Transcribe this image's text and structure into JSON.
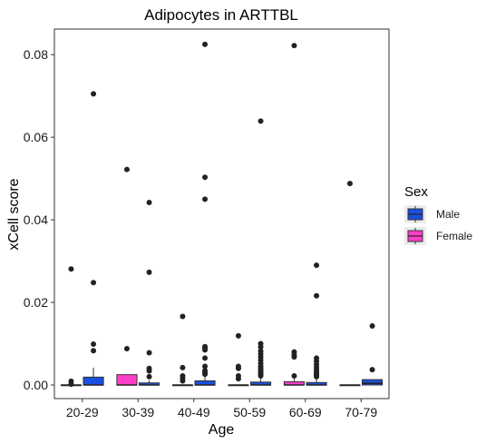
{
  "chart_data": {
    "type": "boxplot",
    "title": "Adipocytes in ARTTBL",
    "xlabel": "Age",
    "ylabel": "xCell score",
    "ylim": [
      -0.0033,
      0.0862
    ],
    "yticks": [
      0.0,
      0.02,
      0.04,
      0.06,
      0.08
    ],
    "ytick_labels": [
      "0.00",
      "0.02",
      "0.04",
      "0.06",
      "0.08"
    ],
    "categories": [
      "20-29",
      "30-39",
      "40-49",
      "50-59",
      "60-69",
      "70-79"
    ],
    "grid": false,
    "legend": {
      "title": "Sex",
      "placement": "right",
      "entries": [
        {
          "label": "Male",
          "color": "#1a4fe0"
        },
        {
          "label": "Female",
          "color": "#ff3fc8"
        }
      ]
    },
    "series": [
      {
        "name": "Male",
        "color": "#1a4fe0",
        "boxes": [
          {
            "category": "20-29",
            "q1": 0.0,
            "median": 0.0,
            "q3": 0.0019,
            "whisker_low": 0.0,
            "whisker_high": 0.0042,
            "outliers": [
              0.0705,
              0.0248,
              0.0099,
              0.0083
            ]
          },
          {
            "category": "30-39",
            "q1": 0.0,
            "median": 0.0,
            "q3": 0.0005,
            "whisker_low": 0.0,
            "whisker_high": 0.0011,
            "outliers": [
              0.0442,
              0.0273,
              0.0078,
              0.004,
              0.0034,
              0.002
            ]
          },
          {
            "category": "40-49",
            "q1": 0.0,
            "median": 0.0,
            "q3": 0.001,
            "whisker_low": 0.0,
            "whisker_high": 0.0023,
            "outliers": [
              0.0825,
              0.0503,
              0.045,
              0.0093,
              0.0089,
              0.0085,
              0.0065,
              0.0045,
              0.0035,
              0.003,
              0.0026
            ]
          },
          {
            "category": "50-59",
            "q1": 0.0,
            "median": 0.0,
            "q3": 0.0007,
            "whisker_low": 0.0,
            "whisker_high": 0.0018,
            "outliers": [
              0.0639,
              0.01,
              0.0092,
              0.0082,
              0.0075,
              0.0068,
              0.006,
              0.0052,
              0.0045,
              0.004,
              0.0035,
              0.003,
              0.0026,
              0.0022
            ]
          },
          {
            "category": "60-69",
            "q1": 0.0,
            "median": 0.0,
            "q3": 0.0006,
            "whisker_low": 0.0,
            "whisker_high": 0.0015,
            "outliers": [
              0.029,
              0.0216,
              0.0065,
              0.0058,
              0.005,
              0.0043,
              0.0037,
              0.0032,
              0.0028,
              0.0024,
              0.002
            ]
          },
          {
            "category": "70-79",
            "q1": 0.0,
            "median": 0.0004,
            "q3": 0.0013,
            "whisker_low": 0.0,
            "whisker_high": 0.0013,
            "outliers": [
              0.0143,
              0.0037
            ]
          }
        ]
      },
      {
        "name": "Female",
        "color": "#ff3fc8",
        "boxes": [
          {
            "category": "20-29",
            "q1": 0.0,
            "median": 0.0,
            "q3": 0.0,
            "whisker_low": 0.0,
            "whisker_high": 0.0,
            "outliers": [
              0.0281,
              0.0009,
              0.0002
            ]
          },
          {
            "category": "30-39",
            "q1": 0.0,
            "median": 0.0,
            "q3": 0.0025,
            "whisker_low": 0.0,
            "whisker_high": 0.0025,
            "outliers": [
              0.0522,
              0.0088
            ]
          },
          {
            "category": "40-49",
            "q1": 0.0,
            "median": 0.0,
            "q3": 0.0,
            "whisker_low": 0.0,
            "whisker_high": 0.0,
            "outliers": [
              0.0166,
              0.0042,
              0.0022,
              0.0016,
              0.001
            ]
          },
          {
            "category": "50-59",
            "q1": 0.0,
            "median": 0.0,
            "q3": 0.0,
            "whisker_low": 0.0,
            "whisker_high": 0.0,
            "outliers": [
              0.0119,
              0.0045,
              0.004,
              0.0022,
              0.0015
            ]
          },
          {
            "category": "60-69",
            "q1": 0.0,
            "median": 0.0,
            "q3": 0.0008,
            "whisker_low": 0.0,
            "whisker_high": 0.0015,
            "outliers": [
              0.0822,
              0.008,
              0.0073,
              0.0068,
              0.0022
            ]
          },
          {
            "category": "70-79",
            "q1": 0.0,
            "median": 0.0,
            "q3": 0.0,
            "whisker_low": 0.0,
            "whisker_high": 0.0,
            "outliers": [
              0.0488
            ]
          }
        ]
      }
    ]
  }
}
